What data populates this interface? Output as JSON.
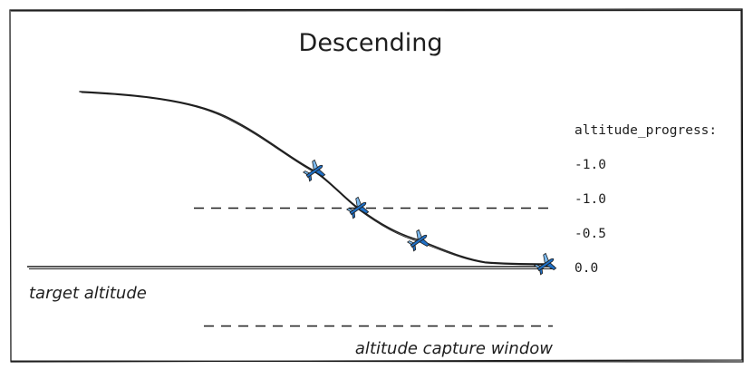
{
  "title": "Descending",
  "labels": {
    "target_altitude": "target altitude",
    "capture_window": "altitude capture window"
  },
  "progress": {
    "header": "altitude_progress:",
    "values": [
      "-1.0",
      "-1.0",
      "-0.5",
      "0.0"
    ]
  },
  "colors": {
    "ink": "#1e1e1e",
    "plane": "#1f6fc5",
    "plane_light": "#7ab8ee"
  },
  "icons": [
    "airplane-icon",
    "airplane-icon",
    "airplane-icon",
    "airplane-icon"
  ]
}
